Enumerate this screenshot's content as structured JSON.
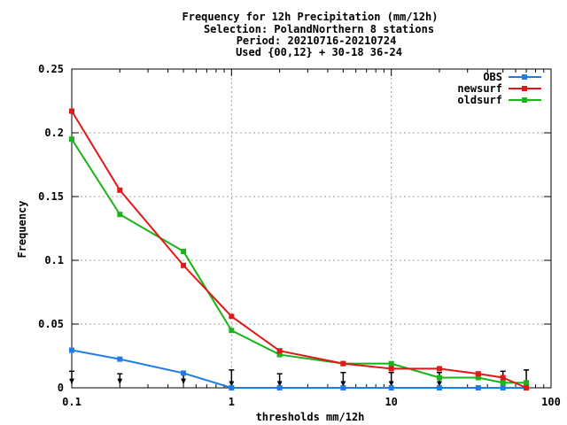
{
  "chart_data": {
    "type": "line",
    "title_lines": [
      "Frequency  for 12h Precipitation (mm/12h)",
      "Selection: PolandNorthern      8 stations",
      "Period: 20210716-20210724",
      "Used {00,12} + 30-18 36-24"
    ],
    "xlabel": "thresholds mm/12h",
    "ylabel": "Frequency",
    "x_scale": "log",
    "xlim": [
      0.1,
      100
    ],
    "ylim": [
      0,
      0.25
    ],
    "x_ticks": [
      {
        "value": 0.1,
        "label": "0.1"
      },
      {
        "value": 1,
        "label": "1"
      },
      {
        "value": 10,
        "label": "10"
      },
      {
        "value": 100,
        "label": "100"
      }
    ],
    "y_ticks": [
      {
        "value": 0,
        "label": "0"
      },
      {
        "value": 0.05,
        "label": "0.05"
      },
      {
        "value": 0.1,
        "label": "0.1"
      },
      {
        "value": 0.15,
        "label": "0.15"
      },
      {
        "value": 0.2,
        "label": "0.2"
      },
      {
        "value": 0.25,
        "label": "0.25"
      }
    ],
    "grid": true,
    "legend_position": "top-right",
    "x": [
      0.1,
      0.2,
      0.5,
      1,
      2,
      5,
      10,
      20,
      35,
      50,
      70
    ],
    "series": [
      {
        "name": "OBS",
        "color": "#1e7ce6",
        "values": [
          0.0295,
          0.0225,
          0.0115,
          0.0,
          0.0,
          0.0,
          0.0,
          0.0,
          0.0,
          0.0,
          0.0
        ]
      },
      {
        "name": "newsurf",
        "color": "#e01818",
        "values": [
          0.217,
          0.155,
          0.096,
          0.056,
          0.029,
          0.019,
          0.015,
          0.015,
          0.011,
          0.008,
          0.0
        ]
      },
      {
        "name": "oldsurf",
        "color": "#18b418",
        "values": [
          0.195,
          0.136,
          0.107,
          0.045,
          0.026,
          0.019,
          0.019,
          0.008,
          0.008,
          0.004,
          0.004
        ]
      }
    ],
    "error_bars": [
      {
        "x": 0.1,
        "low": 0.003,
        "high": 0.013
      },
      {
        "x": 0.2,
        "low": 0.003,
        "high": 0.011
      },
      {
        "x": 0.5,
        "low": 0.003,
        "high": 0.013
      },
      {
        "x": 1,
        "low": 0.001,
        "high": 0.014
      },
      {
        "x": 2,
        "low": 0.001,
        "high": 0.011
      },
      {
        "x": 5,
        "low": 0.001,
        "high": 0.012
      },
      {
        "x": 10,
        "low": 0.001,
        "high": 0.012
      },
      {
        "x": 20,
        "low": 0.001,
        "high": 0.012
      },
      {
        "x": 50,
        "low": 0.001,
        "high": 0.013
      },
      {
        "x": 70,
        "low": 0.001,
        "high": 0.014
      }
    ]
  }
}
